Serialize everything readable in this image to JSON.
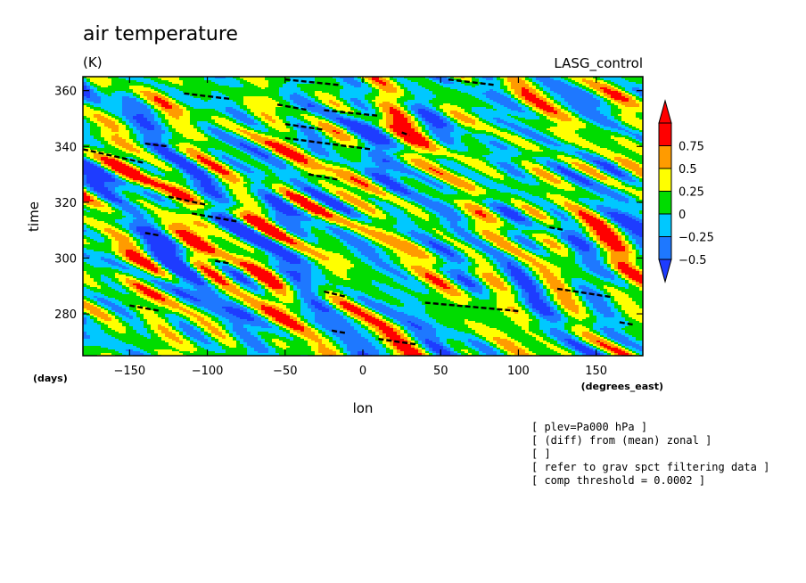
{
  "chart_data": {
    "type": "heatmap",
    "title": "air temperature",
    "units": "(K)",
    "subtitle_right": "LASG_control",
    "xlabel": "lon",
    "ylabel": "time",
    "x_unit_label": "(degrees_east)",
    "y_unit_label": "(days)",
    "xlim": [
      -180,
      180
    ],
    "ylim": [
      265,
      365
    ],
    "x_ticks": [
      -150,
      -100,
      -50,
      0,
      50,
      100,
      150
    ],
    "y_ticks": [
      280,
      300,
      320,
      340,
      360
    ],
    "x_tick_labels": [
      "−150",
      "−100",
      "−50",
      "0",
      "50",
      "100",
      "150"
    ],
    "y_tick_labels": [
      "280",
      "300",
      "320",
      "340",
      "360"
    ],
    "colorbar": {
      "levels": [
        -0.5,
        -0.25,
        0,
        0.25,
        0.5,
        0.75
      ],
      "labels": [
        "−0.5",
        "−0.25",
        "0",
        "0.25",
        "0.5",
        "0.75"
      ],
      "colors": [
        "#1e78ff",
        "#00c8ff",
        "#00dc00",
        "#ffff00",
        "#ff9b00",
        "#ff0000"
      ],
      "under_color": "#1e3cff",
      "over_color": "#ff0000"
    },
    "notes": [
      "[ plev=Pa000 hPa ]",
      "[ (diff) from (mean) zonal ]",
      "[  ]",
      "[ refer to grav spct filtering data ]",
      "[ comp threshold = 0.0002 ]"
    ],
    "contours": [
      {
        "lon": [
          -180,
          -140
        ],
        "time": [
          339,
          334
        ]
      },
      {
        "lon": [
          -150,
          -130
        ],
        "time": [
          283,
          281
        ]
      },
      {
        "lon": [
          -125,
          -100
        ],
        "time": [
          322,
          319
        ]
      },
      {
        "lon": [
          -110,
          -80
        ],
        "time": [
          316,
          313
        ]
      },
      {
        "lon": [
          -115,
          -85
        ],
        "time": [
          359,
          357
        ]
      },
      {
        "lon": [
          -95,
          -85
        ],
        "time": [
          299,
          298
        ]
      },
      {
        "lon": [
          -55,
          -35
        ],
        "time": [
          355,
          353
        ]
      },
      {
        "lon": [
          -50,
          5
        ],
        "time": [
          343,
          339
        ]
      },
      {
        "lon": [
          -50,
          -25
        ],
        "time": [
          348,
          346
        ]
      },
      {
        "lon": [
          -35,
          -15
        ],
        "time": [
          330,
          328
        ]
      },
      {
        "lon": [
          -25,
          10
        ],
        "time": [
          353,
          351
        ]
      },
      {
        "lon": [
          -50,
          -15
        ],
        "time": [
          364,
          362
        ]
      },
      {
        "lon": [
          -25,
          -10
        ],
        "time": [
          288,
          286
        ]
      },
      {
        "lon": [
          -20,
          -10
        ],
        "time": [
          274,
          273
        ]
      },
      {
        "lon": [
          10,
          35
        ],
        "time": [
          271,
          269
        ]
      },
      {
        "lon": [
          25,
          30
        ],
        "time": [
          345,
          344
        ]
      },
      {
        "lon": [
          40,
          100
        ],
        "time": [
          284,
          281
        ]
      },
      {
        "lon": [
          55,
          85
        ],
        "time": [
          364,
          362
        ]
      },
      {
        "lon": [
          120,
          130
        ],
        "time": [
          311,
          310
        ]
      },
      {
        "lon": [
          125,
          160
        ],
        "time": [
          289,
          286
        ]
      },
      {
        "lon": [
          165,
          175
        ],
        "time": [
          277,
          276
        ]
      },
      {
        "lon": [
          -140,
          -125
        ],
        "time": [
          341,
          340
        ]
      },
      {
        "lon": [
          -140,
          -130
        ],
        "time": [
          309,
          308
        ]
      }
    ]
  }
}
